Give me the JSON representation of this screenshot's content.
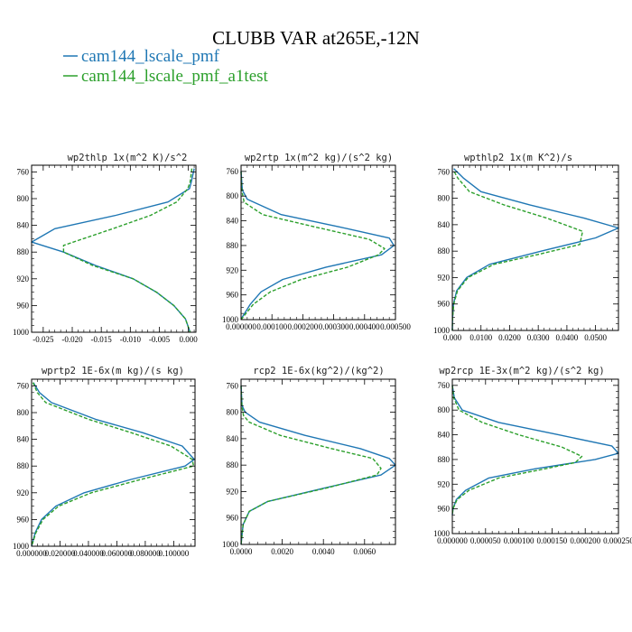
{
  "title": "CLUBB VAR at265E,-12N",
  "legend": [
    {
      "label": "cam144_lscale_pmf",
      "color": "#1f77b4",
      "dash": false
    },
    {
      "label": "cam144_lscale_pmf_a1test",
      "color": "#2ca02c",
      "dash": true
    }
  ],
  "chart_data": [
    {
      "type": "line",
      "title": "wp2thlp  1x(m^2 K)/s^2",
      "xlim": [
        -0.027,
        0.0013
      ],
      "ylim": [
        1000,
        750
      ],
      "yticks": [
        760,
        800,
        840,
        880,
        920,
        960,
        1000
      ],
      "xticks": [
        -0.025,
        -0.02,
        -0.015,
        -0.01,
        -0.005,
        0.0
      ],
      "xtick_labels": [
        "-0.025",
        "-0.020",
        "-0.015",
        "-0.010",
        "-0.005",
        "0.000"
      ],
      "series": [
        {
          "name": "cam144_lscale_pmf",
          "y": [
            755,
            775,
            785,
            805,
            825,
            845,
            865,
            880,
            900,
            920,
            940,
            960,
            980,
            1000
          ],
          "x": [
            0.001,
            0.0005,
            0.0002,
            -0.0035,
            -0.0125,
            -0.023,
            -0.027,
            -0.0215,
            -0.016,
            -0.0095,
            -0.0055,
            -0.0025,
            -0.0005,
            0.0003
          ]
        },
        {
          "name": "cam144_lscale_pmf_a1test",
          "y": [
            755,
            775,
            785,
            805,
            825,
            845,
            870,
            880,
            900,
            920,
            940,
            960,
            980,
            1000
          ],
          "x": [
            0.0006,
            0.0003,
            -0.0001,
            -0.002,
            -0.0065,
            -0.013,
            -0.0215,
            -0.0215,
            -0.0165,
            -0.0095,
            -0.0055,
            -0.0025,
            -0.0005,
            0.0003
          ]
        }
      ]
    },
    {
      "type": "line",
      "title": "wp2rtp  1x(m^2 kg)/(s^2 kg)",
      "xlim": [
        0,
        0.0005
      ],
      "ylim": [
        1000,
        750
      ],
      "yticks": [
        760,
        800,
        840,
        880,
        920,
        960,
        1000
      ],
      "xticks": [
        0,
        0.0001,
        0.0002,
        0.0003,
        0.0004,
        0.0005
      ],
      "xtick_labels": [
        "0.000000",
        "0.000100",
        "0.000200",
        "0.000300",
        "0.000400",
        "0.000500"
      ],
      "series": [
        {
          "name": "cam144_lscale_pmf",
          "y": [
            760,
            790,
            805,
            830,
            850,
            868,
            880,
            895,
            915,
            935,
            955,
            975,
            995,
            1000
          ],
          "x": [
            0,
            4e-06,
            2e-05,
            0.00013,
            0.00032,
            0.00048,
            0.000495,
            0.000455,
            0.000275,
            0.000135,
            6.5e-05,
            3e-05,
            5e-06,
            0
          ]
        },
        {
          "name": "cam144_lscale_pmf_a1test",
          "y": [
            760,
            790,
            810,
            830,
            850,
            870,
            885,
            895,
            915,
            935,
            955,
            975,
            995,
            1000
          ],
          "x": [
            0,
            2e-06,
            1e-05,
            7e-05,
            0.00024,
            0.000415,
            0.000465,
            0.000445,
            0.000345,
            0.000195,
            9.5e-05,
            4e-05,
            8e-06,
            0
          ]
        }
      ]
    },
    {
      "type": "line",
      "title": "wpthlp2  1x(m K^2)/s",
      "xlim": [
        0,
        0.058
      ],
      "ylim": [
        1000,
        750
      ],
      "yticks": [
        760,
        800,
        840,
        880,
        920,
        960,
        1000
      ],
      "xticks": [
        0,
        0.01,
        0.02,
        0.03,
        0.04,
        0.05
      ],
      "xtick_labels": [
        "0.000",
        "0.0100",
        "0.0200",
        "0.0300",
        "0.0400",
        "0.0500"
      ],
      "series": [
        {
          "name": "cam144_lscale_pmf",
          "y": [
            755,
            770,
            790,
            810,
            830,
            845,
            860,
            880,
            900,
            920,
            940,
            960,
            980,
            1000
          ],
          "x": [
            0.0005,
            0.004,
            0.01,
            0.027,
            0.046,
            0.058,
            0.05,
            0.031,
            0.013,
            0.005,
            0.0015,
            0.0004,
            0.0001,
            0
          ]
        },
        {
          "name": "cam144_lscale_pmf_a1test",
          "y": [
            760,
            770,
            790,
            810,
            830,
            850,
            870,
            885,
            900,
            920,
            940,
            960,
            980,
            1000
          ],
          "x": [
            0.0007,
            0.002,
            0.006,
            0.018,
            0.033,
            0.0455,
            0.0445,
            0.03,
            0.0145,
            0.0055,
            0.0018,
            0.0005,
            0.0001,
            0
          ]
        }
      ]
    },
    {
      "type": "line",
      "title": "wprtp2  1E-6x(m kg)/(s kg)",
      "xlim": [
        0,
        0.115
      ],
      "ylim": [
        1000,
        750
      ],
      "yticks": [
        760,
        800,
        840,
        880,
        920,
        960,
        1000
      ],
      "xticks": [
        0,
        0.02,
        0.04,
        0.06,
        0.08,
        0.1
      ],
      "xtick_labels": [
        "0.000000",
        "0.020000",
        "0.040000",
        "0.060000",
        "0.080000",
        "0.100000"
      ],
      "series": [
        {
          "name": "cam144_lscale_pmf",
          "y": [
            755,
            770,
            785,
            810,
            830,
            850,
            870,
            880,
            900,
            920,
            940,
            960,
            980,
            1000
          ],
          "x": [
            0.0012,
            0.0055,
            0.014,
            0.045,
            0.078,
            0.106,
            0.1145,
            0.108,
            0.07,
            0.037,
            0.017,
            0.007,
            0.0025,
            0
          ]
        },
        {
          "name": "cam144_lscale_pmf_a1test",
          "y": [
            755,
            770,
            785,
            810,
            830,
            850,
            870,
            880,
            900,
            920,
            940,
            960,
            980,
            1000
          ],
          "x": [
            0.001,
            0.004,
            0.01,
            0.04,
            0.07,
            0.098,
            0.113,
            0.114,
            0.077,
            0.042,
            0.019,
            0.008,
            0.003,
            0
          ]
        }
      ]
    },
    {
      "type": "line",
      "title": "rcp2  1E-6x(kg^2)/(kg^2)",
      "xlim": [
        0,
        0.0075
      ],
      "ylim": [
        1000,
        750
      ],
      "yticks": [
        760,
        800,
        840,
        880,
        920,
        960,
        1000
      ],
      "xticks": [
        0,
        0.002,
        0.004,
        0.006
      ],
      "xtick_labels": [
        "0.0000",
        "0.0020",
        "0.0040",
        "0.0060"
      ],
      "series": [
        {
          "name": "cam144_lscale_pmf",
          "y": [
            760,
            790,
            800,
            815,
            835,
            855,
            870,
            880,
            895,
            915,
            935,
            950,
            970,
            1000
          ],
          "x": [
            0,
            5e-05,
            0.0002,
            0.0009,
            0.0031,
            0.0058,
            0.0072,
            0.0075,
            0.0068,
            0.004,
            0.0013,
            0.0004,
            0.0001,
            0
          ]
        },
        {
          "name": "cam144_lscale_pmf_a1test",
          "y": [
            760,
            790,
            805,
            815,
            835,
            855,
            870,
            885,
            895,
            915,
            935,
            950,
            970,
            1000
          ],
          "x": [
            0,
            4e-05,
            0.00012,
            0.0004,
            0.0019,
            0.0044,
            0.0064,
            0.0068,
            0.0066,
            0.0041,
            0.0013,
            0.0004,
            0.0001,
            0
          ]
        }
      ]
    },
    {
      "type": "line",
      "title": "wp2rcp  1E-3x(m^2 kg)/(s^2 kg)",
      "xlim": [
        0,
        0.00025
      ],
      "ylim": [
        1000,
        750
      ],
      "yticks": [
        760,
        800,
        840,
        880,
        920,
        960,
        1000
      ],
      "xticks": [
        0,
        5e-05,
        0.0001,
        0.00015,
        0.0002,
        0.00025
      ],
      "xtick_labels": [
        "0.000000",
        "0.000050",
        "0.000100",
        "0.000150",
        "0.000200",
        "0.000250"
      ],
      "series": [
        {
          "name": "cam144_lscale_pmf",
          "y": [
            760,
            780,
            800,
            820,
            840,
            858,
            870,
            880,
            895,
            910,
            930,
            945,
            960,
            970
          ],
          "x": [
            0,
            3e-06,
            1.5e-05,
            7e-05,
            0.00016,
            0.00024,
            0.00025,
            0.000215,
            0.000125,
            5.5e-05,
            2e-05,
            6e-06,
            1e-06,
            0
          ]
        },
        {
          "name": "cam144_lscale_pmf_a1test",
          "y": [
            760,
            780,
            800,
            820,
            840,
            860,
            875,
            885,
            895,
            910,
            930,
            945,
            960,
            970
          ],
          "x": [
            0,
            2e-06,
            1e-05,
            4.5e-05,
            0.0001,
            0.000165,
            0.000195,
            0.000185,
            0.00014,
            7e-05,
            2.5e-05,
            7e-06,
            1e-06,
            0
          ]
        }
      ]
    }
  ]
}
